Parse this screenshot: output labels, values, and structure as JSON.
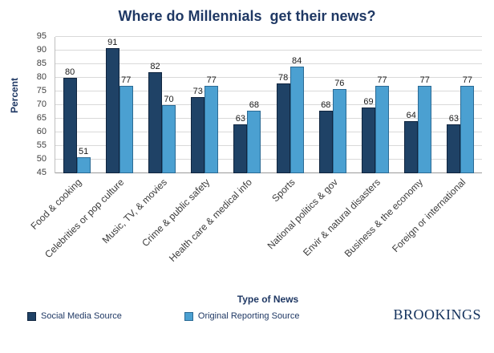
{
  "chart_data": {
    "type": "bar",
    "title": "Where do Millennials  get their news?",
    "xlabel": "Type of News",
    "ylabel": "Percent",
    "ylim": [
      45,
      95
    ],
    "ytick_step": 5,
    "grid": true,
    "legend_position": "bottom-left",
    "categories": [
      "Food & cooking",
      "Celebrities or pop culture",
      "Music, TV, & movies",
      "Crime & public safety",
      "Health care & medical info",
      "Sports",
      "National politics & gov",
      "Envir & natural disasters",
      "Business & the economy",
      "Foreign or international"
    ],
    "series": [
      {
        "name": "Social Media Source",
        "color": "#1F4266",
        "border": "#10253F",
        "values": [
          80,
          91,
          82,
          73,
          63,
          78,
          68,
          69,
          64,
          63
        ]
      },
      {
        "name": "Original Reporting Source",
        "color": "#4BA0D1",
        "border": "#2B6A94",
        "values": [
          51,
          77,
          70,
          77,
          68,
          84,
          76,
          77,
          77,
          77
        ]
      }
    ]
  },
  "footer": {
    "brand": "BROOKINGS"
  }
}
